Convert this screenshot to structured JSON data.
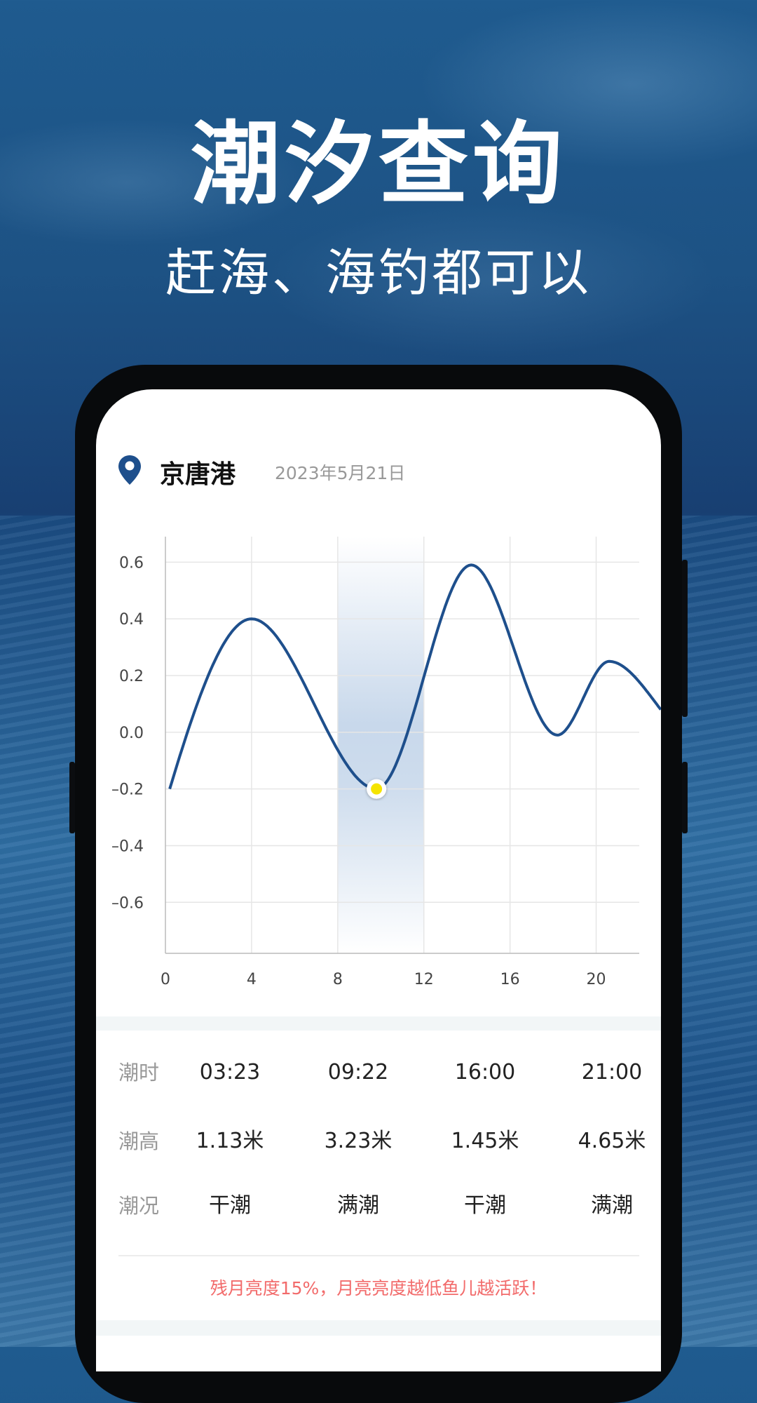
{
  "hero": {
    "title": "潮汐查询",
    "subtitle": "赶海、海钓都可以"
  },
  "header": {
    "icon": "location-pin-icon",
    "port": "京唐港",
    "date": "2023年5月21日"
  },
  "colors": {
    "line": "#1e4f8c",
    "marker": "#f5e400",
    "highlight": "#c5d6ea",
    "note": "#f26b6b"
  },
  "chart_data": {
    "type": "line",
    "x_ticks": [
      "0",
      "4",
      "8",
      "12",
      "16",
      "20"
    ],
    "y_ticks": [
      "0.6",
      "0.4",
      "0.2",
      "0.0",
      "–0.2",
      "–0.4",
      "–0.6"
    ],
    "xlim": [
      0,
      22
    ],
    "ylim": [
      -0.78,
      0.69
    ],
    "grid": true,
    "points": [
      [
        0.2,
        -0.2
      ],
      [
        4,
        0.4
      ],
      [
        9.8,
        -0.2
      ],
      [
        14.2,
        0.59
      ],
      [
        18.2,
        -0.01
      ],
      [
        20.6,
        0.25
      ],
      [
        23,
        0.08
      ]
    ],
    "highlight_range": [
      8,
      12
    ],
    "selected_point": [
      9.8,
      -0.2
    ]
  },
  "table": {
    "labels": [
      "潮时",
      "潮高",
      "潮况"
    ],
    "times": [
      "03:23",
      "09:22",
      "16:00",
      "21:00"
    ],
    "heights": [
      "1.13米",
      "3.23米",
      "1.45米",
      "4.65米"
    ],
    "states": [
      "干潮",
      "满潮",
      "干潮",
      "满潮"
    ]
  },
  "note": "残月亮度15%，月亮亮度越低鱼儿越活跃！"
}
